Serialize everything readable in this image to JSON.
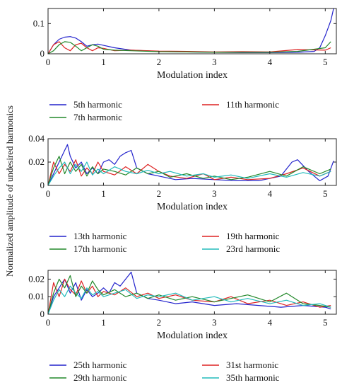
{
  "ylabel": "Normalized amplitude of undesired harmonics",
  "chart_data": [
    {
      "type": "line",
      "xlabel": "Modulation index",
      "xlim": [
        0,
        5.2
      ],
      "ylim": [
        0,
        0.15
      ],
      "xticks": [
        0,
        1,
        2,
        3,
        4,
        5
      ],
      "yticks": [
        0,
        0.1
      ],
      "ytick_labels": [
        "0",
        "0.1"
      ],
      "legend": "below",
      "series": [
        {
          "name": "5th harmonic",
          "color": "#2222cc",
          "x": [
            0,
            0.1,
            0.2,
            0.3,
            0.4,
            0.5,
            0.6,
            0.7,
            0.8,
            0.9,
            1.0,
            1.2,
            1.5,
            2.0,
            2.5,
            3.0,
            3.5,
            4.0,
            4.5,
            4.8,
            4.9,
            5.0,
            5.1,
            5.15
          ],
          "y": [
            0.0,
            0.03,
            0.048,
            0.055,
            0.057,
            0.052,
            0.04,
            0.025,
            0.03,
            0.032,
            0.028,
            0.02,
            0.012,
            0.008,
            0.006,
            0.005,
            0.004,
            0.004,
            0.005,
            0.008,
            0.02,
            0.06,
            0.11,
            0.15
          ]
        },
        {
          "name": "11th harmonic",
          "color": "#dd2222",
          "x": [
            0,
            0.1,
            0.2,
            0.3,
            0.4,
            0.5,
            0.6,
            0.7,
            0.8,
            0.9,
            1.0,
            1.2,
            1.5,
            2.0,
            2.5,
            3.0,
            3.5,
            4.0,
            4.5,
            5.0,
            5.1
          ],
          "y": [
            0.0,
            0.03,
            0.04,
            0.02,
            0.01,
            0.03,
            0.035,
            0.02,
            0.01,
            0.02,
            0.018,
            0.01,
            0.012,
            0.009,
            0.008,
            0.006,
            0.007,
            0.006,
            0.014,
            0.012,
            0.02
          ]
        },
        {
          "name": "7th harmonic",
          "color": "#22882a",
          "x": [
            0,
            0.1,
            0.2,
            0.3,
            0.4,
            0.5,
            0.6,
            0.7,
            0.8,
            0.9,
            1.0,
            1.2,
            1.5,
            2.0,
            2.5,
            3.0,
            3.5,
            4.0,
            4.5,
            5.0,
            5.1
          ],
          "y": [
            0.0,
            0.01,
            0.03,
            0.04,
            0.038,
            0.025,
            0.01,
            0.02,
            0.03,
            0.025,
            0.015,
            0.012,
            0.01,
            0.007,
            0.006,
            0.005,
            0.005,
            0.005,
            0.008,
            0.02,
            0.04
          ]
        }
      ]
    },
    {
      "type": "line",
      "xlabel": "Modulation index",
      "xlim": [
        0,
        5.2
      ],
      "ylim": [
        0,
        0.04
      ],
      "xticks": [
        0,
        1,
        2,
        3,
        4,
        5
      ],
      "yticks": [
        0,
        0.02,
        0.04
      ],
      "ytick_labels": [
        "0",
        "0.02",
        "0.04"
      ],
      "legend": "below",
      "series": [
        {
          "name": "13th harmonic",
          "color": "#2222cc",
          "x": [
            0,
            0.1,
            0.2,
            0.3,
            0.35,
            0.4,
            0.5,
            0.6,
            0.7,
            0.8,
            0.9,
            1.0,
            1.1,
            1.2,
            1.3,
            1.4,
            1.5,
            1.6,
            1.8,
            2.0,
            2.3,
            2.6,
            3.0,
            3.4,
            3.8,
            4.2,
            4.4,
            4.5,
            4.7,
            4.9,
            5.05,
            5.15
          ],
          "y": [
            0.0,
            0.01,
            0.02,
            0.03,
            0.035,
            0.025,
            0.015,
            0.02,
            0.01,
            0.015,
            0.01,
            0.02,
            0.022,
            0.018,
            0.025,
            0.028,
            0.03,
            0.015,
            0.01,
            0.008,
            0.005,
            0.006,
            0.005,
            0.004,
            0.004,
            0.008,
            0.02,
            0.022,
            0.012,
            0.004,
            0.008,
            0.021
          ]
        },
        {
          "name": "19th harmonic",
          "color": "#dd2222",
          "x": [
            0,
            0.1,
            0.2,
            0.3,
            0.4,
            0.5,
            0.6,
            0.7,
            0.8,
            0.9,
            1.0,
            1.2,
            1.4,
            1.6,
            1.8,
            2.0,
            2.2,
            2.5,
            2.8,
            3.0,
            3.3,
            3.6,
            4.0,
            4.3,
            4.6,
            4.9,
            5.1
          ],
          "y": [
            0.0,
            0.02,
            0.01,
            0.018,
            0.012,
            0.022,
            0.008,
            0.015,
            0.01,
            0.02,
            0.012,
            0.009,
            0.016,
            0.01,
            0.018,
            0.012,
            0.008,
            0.006,
            0.01,
            0.005,
            0.007,
            0.005,
            0.006,
            0.01,
            0.015,
            0.008,
            0.012
          ]
        },
        {
          "name": "17th harmonic",
          "color": "#22882a",
          "x": [
            0,
            0.1,
            0.2,
            0.3,
            0.4,
            0.5,
            0.6,
            0.7,
            0.8,
            0.9,
            1.0,
            1.2,
            1.4,
            1.6,
            1.8,
            2.0,
            2.2,
            2.5,
            2.8,
            3.0,
            3.3,
            3.6,
            4.0,
            4.3,
            4.6,
            4.9,
            5.1
          ],
          "y": [
            0.0,
            0.015,
            0.025,
            0.01,
            0.02,
            0.012,
            0.018,
            0.008,
            0.016,
            0.01,
            0.014,
            0.012,
            0.009,
            0.015,
            0.01,
            0.012,
            0.007,
            0.01,
            0.006,
            0.008,
            0.005,
            0.007,
            0.012,
            0.008,
            0.016,
            0.01,
            0.014
          ]
        },
        {
          "name": "23rd harmonic",
          "color": "#22bbbb",
          "x": [
            0,
            0.1,
            0.2,
            0.3,
            0.4,
            0.5,
            0.6,
            0.7,
            0.8,
            0.9,
            1.0,
            1.2,
            1.4,
            1.6,
            1.8,
            2.0,
            2.2,
            2.5,
            2.8,
            3.0,
            3.3,
            3.6,
            4.0,
            4.3,
            4.6,
            4.9,
            5.1
          ],
          "y": [
            0.0,
            0.008,
            0.015,
            0.02,
            0.01,
            0.018,
            0.012,
            0.02,
            0.009,
            0.014,
            0.01,
            0.016,
            0.012,
            0.01,
            0.013,
            0.01,
            0.012,
            0.008,
            0.01,
            0.007,
            0.009,
            0.006,
            0.01,
            0.007,
            0.011,
            0.008,
            0.012
          ]
        }
      ]
    },
    {
      "type": "line",
      "xlabel": "Modulation index",
      "xlim": [
        0,
        5.2
      ],
      "ylim": [
        0,
        0.025
      ],
      "xticks": [
        0,
        1,
        2,
        3,
        4,
        5
      ],
      "yticks": [
        0,
        0.01,
        0.02
      ],
      "ytick_labels": [
        "0",
        "0.01",
        "0.02"
      ],
      "legend": "below",
      "series": [
        {
          "name": "25th harmonic",
          "color": "#2222cc",
          "x": [
            0,
            0.1,
            0.2,
            0.3,
            0.4,
            0.5,
            0.6,
            0.7,
            0.8,
            0.9,
            1.0,
            1.1,
            1.2,
            1.3,
            1.4,
            1.5,
            1.6,
            1.8,
            2.0,
            2.3,
            2.6,
            3.0,
            3.4,
            3.8,
            4.2,
            4.6,
            5.0,
            5.1
          ],
          "y": [
            0.0,
            0.01,
            0.015,
            0.02,
            0.012,
            0.018,
            0.008,
            0.014,
            0.01,
            0.012,
            0.015,
            0.012,
            0.018,
            0.016,
            0.02,
            0.024,
            0.012,
            0.009,
            0.008,
            0.006,
            0.007,
            0.005,
            0.006,
            0.005,
            0.004,
            0.005,
            0.004,
            0.003
          ]
        },
        {
          "name": "31st harmonic",
          "color": "#dd2222",
          "x": [
            0,
            0.1,
            0.2,
            0.3,
            0.4,
            0.5,
            0.6,
            0.7,
            0.8,
            0.9,
            1.0,
            1.2,
            1.4,
            1.6,
            1.8,
            2.0,
            2.3,
            2.6,
            3.0,
            3.3,
            3.6,
            4.0,
            4.3,
            4.6,
            4.9,
            5.1
          ],
          "y": [
            0.0,
            0.018,
            0.01,
            0.02,
            0.014,
            0.011,
            0.019,
            0.012,
            0.016,
            0.01,
            0.013,
            0.011,
            0.015,
            0.01,
            0.012,
            0.009,
            0.011,
            0.008,
            0.007,
            0.01,
            0.006,
            0.008,
            0.005,
            0.007,
            0.004,
            0.005
          ]
        },
        {
          "name": "29th harmonic",
          "color": "#22882a",
          "x": [
            0,
            0.1,
            0.2,
            0.3,
            0.4,
            0.5,
            0.6,
            0.7,
            0.8,
            0.9,
            1.0,
            1.2,
            1.4,
            1.6,
            1.8,
            2.0,
            2.3,
            2.6,
            3.0,
            3.3,
            3.6,
            4.0,
            4.3,
            4.6,
            4.9,
            5.1
          ],
          "y": [
            0.0,
            0.012,
            0.02,
            0.015,
            0.022,
            0.01,
            0.016,
            0.012,
            0.019,
            0.014,
            0.011,
            0.014,
            0.01,
            0.012,
            0.009,
            0.011,
            0.008,
            0.01,
            0.007,
            0.009,
            0.011,
            0.007,
            0.012,
            0.006,
            0.005,
            0.004
          ]
        },
        {
          "name": "35th harmonic",
          "color": "#22bbbb",
          "x": [
            0,
            0.1,
            0.2,
            0.3,
            0.4,
            0.5,
            0.6,
            0.7,
            0.8,
            0.9,
            1.0,
            1.2,
            1.4,
            1.6,
            1.8,
            2.0,
            2.3,
            2.6,
            3.0,
            3.3,
            3.6,
            4.0,
            4.3,
            4.6,
            4.9,
            5.1
          ],
          "y": [
            0.0,
            0.008,
            0.014,
            0.01,
            0.016,
            0.012,
            0.009,
            0.015,
            0.011,
            0.013,
            0.01,
            0.012,
            0.014,
            0.009,
            0.011,
            0.01,
            0.012,
            0.008,
            0.01,
            0.007,
            0.009,
            0.006,
            0.008,
            0.005,
            0.006,
            0.004
          ]
        }
      ]
    }
  ]
}
